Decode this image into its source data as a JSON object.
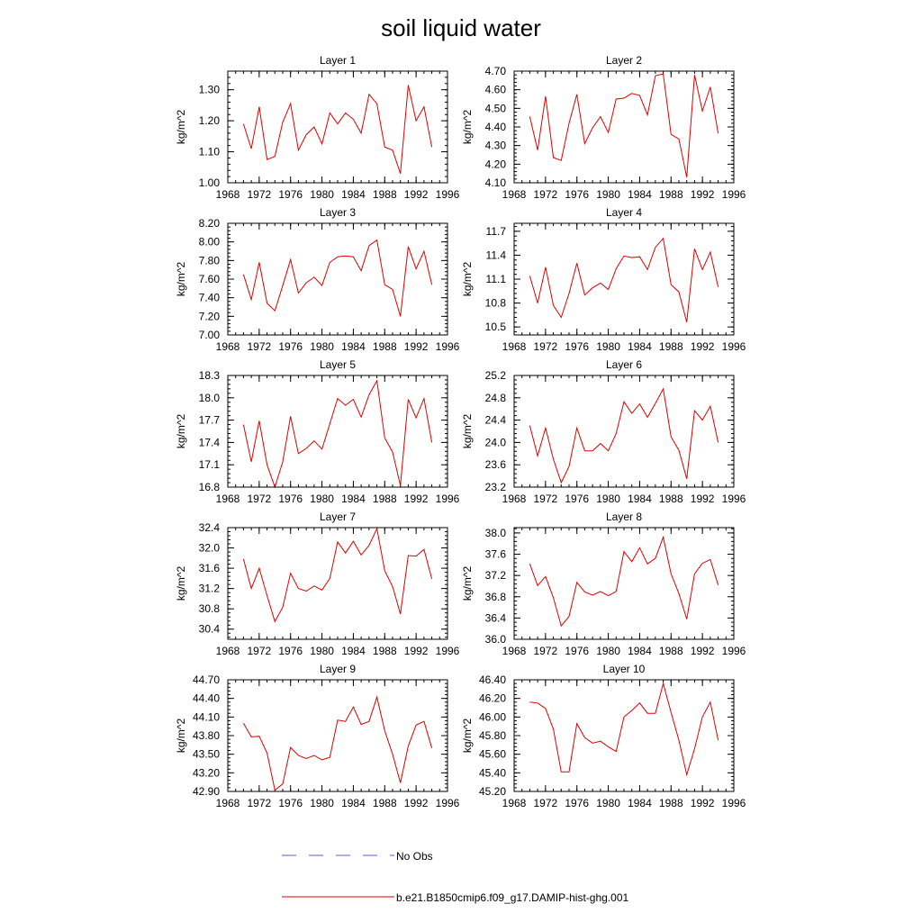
{
  "figure": {
    "title": "soil liquid water",
    "legend": {
      "obs_label": "No Obs",
      "model_label": "b.e21.B1850cmip6.f09_g17.DAMIP-hist-ghg.001",
      "obs_color": "#5a5ad2",
      "model_color": "#e00000"
    }
  },
  "chart_data": [
    {
      "type": "line",
      "title": "Layer 1",
      "ylabel": "kg/m^2",
      "xlim": [
        1968,
        1996
      ],
      "xticks": [
        "1968",
        "1972",
        "1976",
        "1980",
        "1984",
        "1988",
        "1992",
        "1996"
      ],
      "ylim": [
        1.0,
        1.36
      ],
      "yticks": [
        "1.00",
        "1.10",
        "1.20",
        "1.30"
      ],
      "x": [
        1970,
        1971,
        1972,
        1973,
        1974,
        1975,
        1976,
        1977,
        1978,
        1979,
        1980,
        1981,
        1982,
        1983,
        1984,
        1985,
        1986,
        1987,
        1988,
        1989,
        1990,
        1991,
        1992,
        1993,
        1994
      ],
      "series": [
        {
          "name": "b.e21.B1850cmip6.f09_g17.DAMIP-hist-ghg.001",
          "values": [
            1.19,
            1.11,
            1.245,
            1.075,
            1.085,
            1.195,
            1.255,
            1.105,
            1.155,
            1.18,
            1.125,
            1.225,
            1.19,
            1.225,
            1.205,
            1.16,
            1.285,
            1.255,
            1.115,
            1.105,
            1.03,
            1.315,
            1.2,
            1.245,
            1.115
          ]
        }
      ]
    },
    {
      "type": "line",
      "title": "Layer 2",
      "ylabel": "kg/m^2",
      "xlim": [
        1968,
        1996
      ],
      "xticks": [
        "1968",
        "1972",
        "1976",
        "1980",
        "1984",
        "1988",
        "1992",
        "1996"
      ],
      "ylim": [
        4.1,
        4.7
      ],
      "yticks": [
        "4.10",
        "4.20",
        "4.30",
        "4.40",
        "4.50",
        "4.60",
        "4.70"
      ],
      "x": [
        1970,
        1971,
        1972,
        1973,
        1974,
        1975,
        1976,
        1977,
        1978,
        1979,
        1980,
        1981,
        1982,
        1983,
        1984,
        1985,
        1986,
        1987,
        1988,
        1989,
        1990,
        1991,
        1992,
        1993,
        1994
      ],
      "series": [
        {
          "name": "b.e21.B1850cmip6.f09_g17.DAMIP-hist-ghg.001",
          "values": [
            4.455,
            4.275,
            4.565,
            4.235,
            4.22,
            4.42,
            4.575,
            4.31,
            4.395,
            4.455,
            4.37,
            4.55,
            4.555,
            4.58,
            4.57,
            4.465,
            4.675,
            4.685,
            4.36,
            4.335,
            4.13,
            4.68,
            4.485,
            4.615,
            4.365
          ]
        }
      ]
    },
    {
      "type": "line",
      "title": "Layer 3",
      "ylabel": "kg/m^2",
      "xlim": [
        1968,
        1996
      ],
      "xticks": [
        "1968",
        "1972",
        "1976",
        "1980",
        "1984",
        "1988",
        "1992",
        "1996"
      ],
      "ylim": [
        7.0,
        8.2
      ],
      "yticks": [
        "7.00",
        "7.20",
        "7.40",
        "7.60",
        "7.80",
        "8.00",
        "8.20"
      ],
      "x": [
        1970,
        1971,
        1972,
        1973,
        1974,
        1975,
        1976,
        1977,
        1978,
        1979,
        1980,
        1981,
        1982,
        1983,
        1984,
        1985,
        1986,
        1987,
        1988,
        1989,
        1990,
        1991,
        1992,
        1993,
        1994
      ],
      "series": [
        {
          "name": "b.e21.B1850cmip6.f09_g17.DAMIP-hist-ghg.001",
          "values": [
            7.65,
            7.38,
            7.78,
            7.34,
            7.26,
            7.53,
            7.81,
            7.45,
            7.56,
            7.62,
            7.53,
            7.78,
            7.84,
            7.85,
            7.84,
            7.69,
            7.96,
            8.02,
            7.54,
            7.49,
            7.2,
            7.95,
            7.71,
            7.9,
            7.54
          ]
        }
      ]
    },
    {
      "type": "line",
      "title": "Layer 4",
      "ylabel": "kg/m^2",
      "xlim": [
        1968,
        1996
      ],
      "xticks": [
        "1968",
        "1972",
        "1976",
        "1980",
        "1984",
        "1988",
        "1992",
        "1996"
      ],
      "ylim": [
        10.4,
        11.8
      ],
      "yticks": [
        "10.5",
        "10.8",
        "11.1",
        "11.4",
        "11.7"
      ],
      "x": [
        1970,
        1971,
        1972,
        1973,
        1974,
        1975,
        1976,
        1977,
        1978,
        1979,
        1980,
        1981,
        1982,
        1983,
        1984,
        1985,
        1986,
        1987,
        1988,
        1989,
        1990,
        1991,
        1992,
        1993,
        1994
      ],
      "series": [
        {
          "name": "b.e21.B1850cmip6.f09_g17.DAMIP-hist-ghg.001",
          "values": [
            11.14,
            10.8,
            11.25,
            10.77,
            10.62,
            10.92,
            11.3,
            10.9,
            10.99,
            11.05,
            10.97,
            11.23,
            11.39,
            11.37,
            11.38,
            11.22,
            11.5,
            11.61,
            11.03,
            10.94,
            10.56,
            11.48,
            11.22,
            11.44,
            11.0
          ]
        }
      ]
    },
    {
      "type": "line",
      "title": "Layer 5",
      "ylabel": "kg/m^2",
      "xlim": [
        1968,
        1996
      ],
      "xticks": [
        "1968",
        "1972",
        "1976",
        "1980",
        "1984",
        "1988",
        "1992",
        "1996"
      ],
      "ylim": [
        16.8,
        18.3
      ],
      "yticks": [
        "16.8",
        "17.1",
        "17.4",
        "17.7",
        "18.0",
        "18.3"
      ],
      "x": [
        1970,
        1971,
        1972,
        1973,
        1974,
        1975,
        1976,
        1977,
        1978,
        1979,
        1980,
        1981,
        1982,
        1983,
        1984,
        1985,
        1986,
        1987,
        1988,
        1989,
        1990,
        1991,
        1992,
        1993,
        1994
      ],
      "series": [
        {
          "name": "b.e21.B1850cmip6.f09_g17.DAMIP-hist-ghg.001",
          "values": [
            17.64,
            17.14,
            17.69,
            17.1,
            16.8,
            17.14,
            17.75,
            17.25,
            17.32,
            17.42,
            17.31,
            17.65,
            17.99,
            17.9,
            17.98,
            17.74,
            18.04,
            18.23,
            17.46,
            17.27,
            16.82,
            17.98,
            17.73,
            17.99,
            17.4
          ]
        }
      ]
    },
    {
      "type": "line",
      "title": "Layer 6",
      "ylabel": "kg/m^2",
      "xlim": [
        1968,
        1996
      ],
      "xticks": [
        "1968",
        "1972",
        "1976",
        "1980",
        "1984",
        "1988",
        "1992",
        "1996"
      ],
      "ylim": [
        23.2,
        25.2
      ],
      "yticks": [
        "23.2",
        "23.6",
        "24.0",
        "24.4",
        "24.8",
        "25.2"
      ],
      "x": [
        1970,
        1971,
        1972,
        1973,
        1974,
        1975,
        1976,
        1977,
        1978,
        1979,
        1980,
        1981,
        1982,
        1983,
        1984,
        1985,
        1986,
        1987,
        1988,
        1989,
        1990,
        1991,
        1992,
        1993,
        1994
      ],
      "series": [
        {
          "name": "b.e21.B1850cmip6.f09_g17.DAMIP-hist-ghg.001",
          "values": [
            24.3,
            23.76,
            24.26,
            23.7,
            23.28,
            23.57,
            24.26,
            23.85,
            23.85,
            23.98,
            23.85,
            24.16,
            24.73,
            24.52,
            24.69,
            24.45,
            24.7,
            24.96,
            24.1,
            23.86,
            23.35,
            24.57,
            24.4,
            24.65,
            24.0
          ]
        }
      ]
    },
    {
      "type": "line",
      "title": "Layer 7",
      "ylabel": "kg/m^2",
      "xlim": [
        1968,
        1996
      ],
      "xticks": [
        "1968",
        "1972",
        "1976",
        "1980",
        "1984",
        "1988",
        "1992",
        "1996"
      ],
      "ylim": [
        30.2,
        32.4
      ],
      "yticks": [
        "30.4",
        "30.8",
        "31.2",
        "31.6",
        "32.0",
        "32.4"
      ],
      "x": [
        1970,
        1971,
        1972,
        1973,
        1974,
        1975,
        1976,
        1977,
        1978,
        1979,
        1980,
        1981,
        1982,
        1983,
        1984,
        1985,
        1986,
        1987,
        1988,
        1989,
        1990,
        1991,
        1992,
        1993,
        1994
      ],
      "series": [
        {
          "name": "b.e21.B1850cmip6.f09_g17.DAMIP-hist-ghg.001",
          "values": [
            31.78,
            31.2,
            31.6,
            31.06,
            30.55,
            30.83,
            31.5,
            31.2,
            31.15,
            31.25,
            31.17,
            31.4,
            32.12,
            31.9,
            32.13,
            31.86,
            32.05,
            32.38,
            31.55,
            31.24,
            30.7,
            31.85,
            31.84,
            31.97,
            31.39
          ]
        }
      ]
    },
    {
      "type": "line",
      "title": "Layer 8",
      "ylabel": "kg/m^2",
      "xlim": [
        1968,
        1996
      ],
      "xticks": [
        "1968",
        "1972",
        "1976",
        "1980",
        "1984",
        "1988",
        "1992",
        "1996"
      ],
      "ylim": [
        36.0,
        38.1
      ],
      "yticks": [
        "36.0",
        "36.4",
        "36.8",
        "37.2",
        "37.6",
        "38.0"
      ],
      "x": [
        1970,
        1971,
        1972,
        1973,
        1974,
        1975,
        1976,
        1977,
        1978,
        1979,
        1980,
        1981,
        1982,
        1983,
        1984,
        1985,
        1986,
        1987,
        1988,
        1989,
        1990,
        1991,
        1992,
        1993,
        1994
      ],
      "series": [
        {
          "name": "b.e21.B1850cmip6.f09_g17.DAMIP-hist-ghg.001",
          "values": [
            37.42,
            37.01,
            37.18,
            36.78,
            36.25,
            36.43,
            37.07,
            36.89,
            36.83,
            36.9,
            36.82,
            36.9,
            37.65,
            37.46,
            37.72,
            37.42,
            37.52,
            37.92,
            37.23,
            36.86,
            36.38,
            37.23,
            37.43,
            37.5,
            37.02
          ]
        }
      ]
    },
    {
      "type": "line",
      "title": "Layer 9",
      "ylabel": "kg/m^2",
      "xlim": [
        1968,
        1996
      ],
      "xticks": [
        "1968",
        "1972",
        "1976",
        "1980",
        "1984",
        "1988",
        "1992",
        "1996"
      ],
      "ylim": [
        42.9,
        44.7
      ],
      "yticks": [
        "42.90",
        "43.20",
        "43.50",
        "43.80",
        "44.10",
        "44.40",
        "44.70"
      ],
      "x": [
        1970,
        1971,
        1972,
        1973,
        1974,
        1975,
        1976,
        1977,
        1978,
        1979,
        1980,
        1981,
        1982,
        1983,
        1984,
        1985,
        1986,
        1987,
        1988,
        1989,
        1990,
        1991,
        1992,
        1993,
        1994
      ],
      "series": [
        {
          "name": "b.e21.B1850cmip6.f09_g17.DAMIP-hist-ghg.001",
          "values": [
            44.0,
            43.78,
            43.79,
            43.52,
            42.92,
            43.02,
            43.61,
            43.48,
            43.43,
            43.48,
            43.41,
            43.45,
            44.05,
            44.03,
            44.26,
            43.98,
            44.03,
            44.42,
            43.88,
            43.5,
            43.04,
            43.63,
            43.97,
            44.03,
            43.6
          ]
        }
      ]
    },
    {
      "type": "line",
      "title": "Layer 10",
      "ylabel": "kg/m^2",
      "xlim": [
        1968,
        1996
      ],
      "xticks": [
        "1968",
        "1972",
        "1976",
        "1980",
        "1984",
        "1988",
        "1992",
        "1996"
      ],
      "ylim": [
        45.2,
        46.4
      ],
      "yticks": [
        "45.20",
        "45.40",
        "45.60",
        "45.80",
        "46.00",
        "46.20",
        "46.40"
      ],
      "x": [
        1970,
        1971,
        1972,
        1973,
        1974,
        1975,
        1976,
        1977,
        1978,
        1979,
        1980,
        1981,
        1982,
        1983,
        1984,
        1985,
        1986,
        1987,
        1988,
        1989,
        1990,
        1991,
        1992,
        1993,
        1994
      ],
      "series": [
        {
          "name": "b.e21.B1850cmip6.f09_g17.DAMIP-hist-ghg.001",
          "values": [
            46.16,
            46.15,
            46.09,
            45.87,
            45.41,
            45.41,
            45.93,
            45.78,
            45.72,
            45.74,
            45.68,
            45.63,
            46.0,
            46.07,
            46.15,
            46.04,
            46.04,
            46.36,
            46.05,
            45.75,
            45.38,
            45.66,
            46.0,
            46.16,
            45.75
          ]
        }
      ]
    }
  ]
}
